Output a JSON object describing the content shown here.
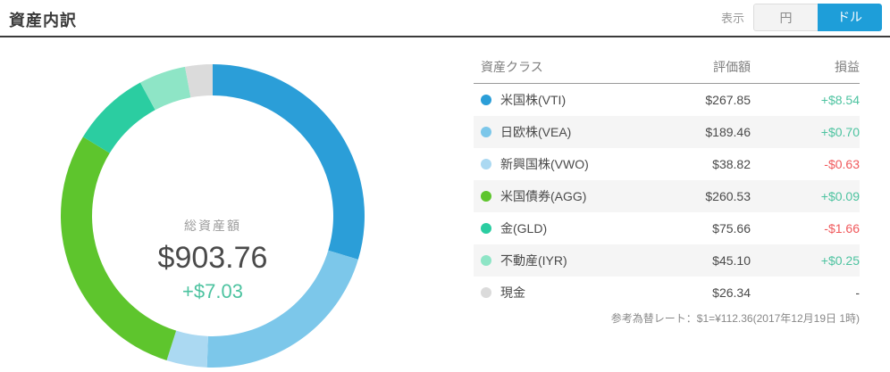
{
  "page": {
    "title": "資産内訳"
  },
  "toggle": {
    "display_label": "表示",
    "yen_label": "円",
    "dollar_label": "ドル",
    "selected": "ドル"
  },
  "summary": {
    "label": "総資産額",
    "total": "$903.76",
    "change": "+$7.03"
  },
  "table": {
    "headers": {
      "asset_class": "資産クラス",
      "value": "評価額",
      "pl": "損益"
    },
    "rows": [
      {
        "label": "米国株(VTI)",
        "color": "#2b9ed8",
        "value": "$267.85",
        "pl": "+$8.54",
        "pl_type": "gain"
      },
      {
        "label": "日欧株(VEA)",
        "color": "#7cc7ea",
        "value": "$189.46",
        "pl": "+$0.70",
        "pl_type": "gain"
      },
      {
        "label": "新興国株(VWO)",
        "color": "#abd9f2",
        "value": "$38.82",
        "pl": "-$0.63",
        "pl_type": "loss"
      },
      {
        "label": "米国債券(AGG)",
        "color": "#5ec52d",
        "value": "$260.53",
        "pl": "+$0.09",
        "pl_type": "gain"
      },
      {
        "label": "金(GLD)",
        "color": "#2bcda1",
        "value": "$75.66",
        "pl": "-$1.66",
        "pl_type": "loss"
      },
      {
        "label": "不動産(IYR)",
        "color": "#8ee5c6",
        "value": "$45.10",
        "pl": "+$0.25",
        "pl_type": "gain"
      },
      {
        "label": "現金",
        "color": "#dbdbdb",
        "value": "$26.34",
        "pl": "-",
        "pl_type": "none"
      }
    ],
    "footnote": "参考為替レート：$1=¥112.36(2017年12月19日 1時)"
  },
  "chart_data": {
    "type": "pie",
    "subtype": "donut",
    "title": "資産内訳",
    "categories": [
      "米国株(VTI)",
      "日欧株(VEA)",
      "新興国株(VWO)",
      "米国債券(AGG)",
      "金(GLD)",
      "不動産(IYR)",
      "現金"
    ],
    "values": [
      267.85,
      189.46,
      38.82,
      260.53,
      75.66,
      45.1,
      26.34
    ],
    "colors": [
      "#2b9ed8",
      "#7cc7ea",
      "#abd9f2",
      "#5ec52d",
      "#2bcda1",
      "#8ee5c6",
      "#dbdbdb"
    ],
    "total": 903.76,
    "center_label": "総資産額",
    "center_total": "$903.76",
    "center_change": "+$7.03",
    "start_angle_deg": -90,
    "direction": "clockwise",
    "legend_position": "table-right"
  },
  "colors": {
    "gain": "#4dc3a0",
    "loss": "#f0595c",
    "accent_blue": "#1e9ed9"
  }
}
